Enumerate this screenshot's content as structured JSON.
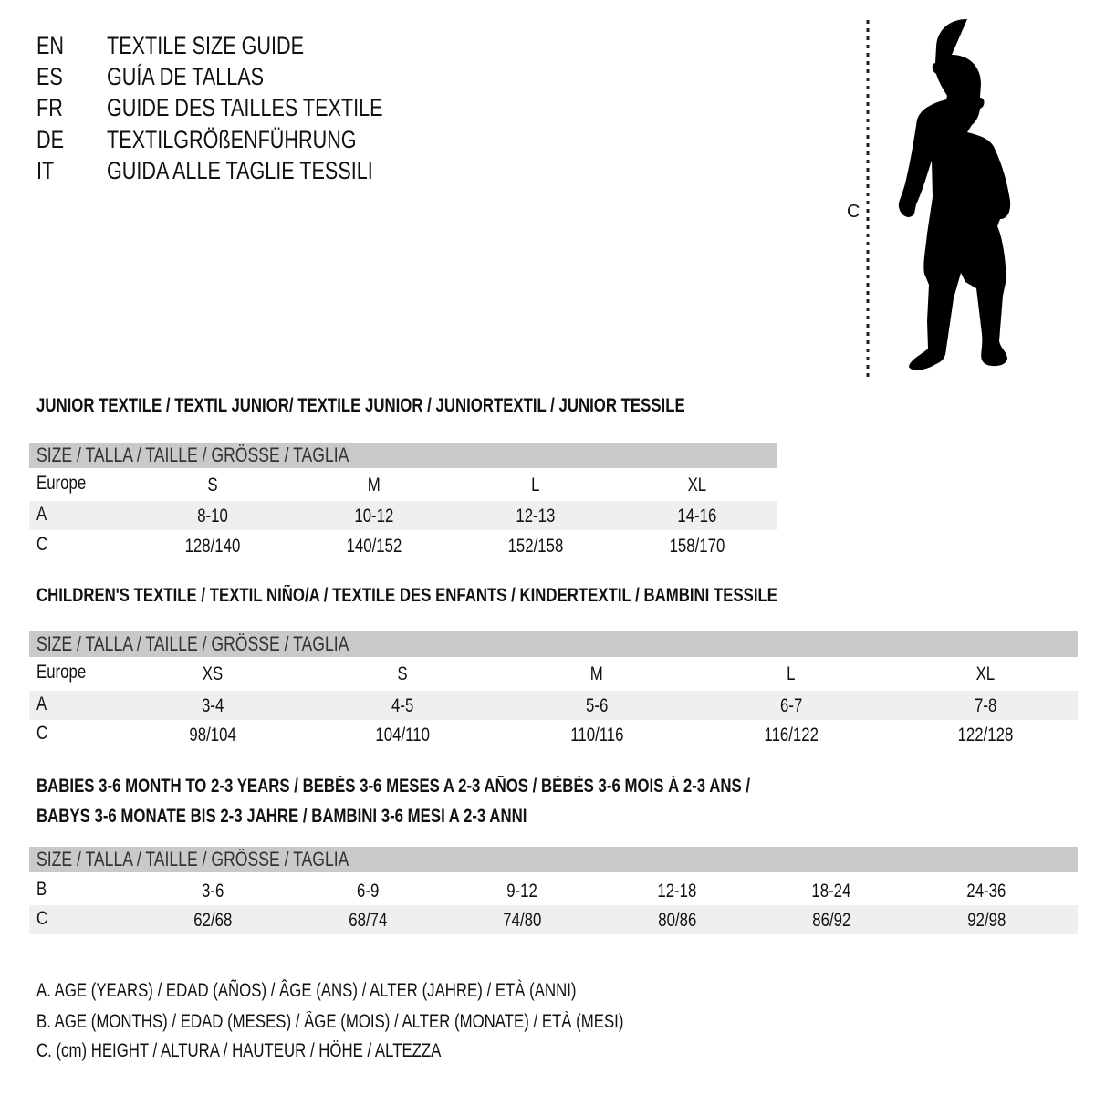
{
  "header": [
    {
      "code": "EN",
      "title": "TEXTILE SIZE GUIDE"
    },
    {
      "code": "ES",
      "title": "GUÍA DE TALLAS"
    },
    {
      "code": "FR",
      "title": "GUIDE DES TAILLES TEXTILE"
    },
    {
      "code": "DE",
      "title": "TEXTILGRÖßENFÜHRUNG"
    },
    {
      "code": "IT",
      "title": "GUIDA ALLE TAGLIE TESSILI"
    }
  ],
  "figure": {
    "label": "C",
    "icon": "child-silhouette-icon"
  },
  "colors": {
    "header_bar": "#c9c9c9",
    "shaded_row": "#efefef",
    "text": "#111111"
  },
  "tables": [
    {
      "title_lines": [
        "JUNIOR TEXTILE / TEXTIL JUNIOR/ TEXTILE JUNIOR / JUNIORTEXTIL / JUNIOR TESSILE"
      ],
      "header": "SIZE / TALLA / TAILLE / GRÖSSE / TAGLIA",
      "rows": [
        {
          "label": "Europe",
          "values": [
            "S",
            "M",
            "L",
            "XL"
          ]
        },
        {
          "label": "A",
          "values": [
            "8-10",
            "10-12",
            "12-13",
            "14-16"
          ]
        },
        {
          "label": "C",
          "values": [
            "128/140",
            "140/152",
            "152/158",
            "158/170"
          ]
        }
      ]
    },
    {
      "title_lines": [
        "CHILDREN'S TEXTILE / TEXTIL NIÑO/A / TEXTILE DES ENFANTS / KINDERTEXTIL / BAMBINI TESSILE"
      ],
      "header": "SIZE / TALLA / TAILLE / GRÖSSE / TAGLIA",
      "rows": [
        {
          "label": "Europe",
          "values": [
            "XS",
            "S",
            "M",
            "L",
            "XL"
          ]
        },
        {
          "label": "A",
          "values": [
            "3-4",
            "4-5",
            "5-6",
            "6-7",
            "7-8"
          ]
        },
        {
          "label": "C",
          "values": [
            "98/104",
            "104/110",
            "110/116",
            "116/122",
            "122/128"
          ]
        }
      ]
    },
    {
      "title_lines": [
        "BABIES 3-6 MONTH TO 2-3 YEARS / BEBÉS 3-6 MESES A 2-3 AÑOS / BÉBÉS 3-6 MOIS À 2-3 ANS /",
        "BABYS 3-6 MONATE BIS 2-3 JAHRE / BAMBINI 3-6 MESI A 2-3 ANNI"
      ],
      "header": "SIZE / TALLA / TAILLE / GRÖSSE / TAGLIA",
      "rows": [
        {
          "label": "B",
          "values": [
            "3-6",
            "6-9",
            "9-12",
            "12-18",
            "18-24",
            "24-36"
          ]
        },
        {
          "label": "C",
          "values": [
            "62/68",
            "68/74",
            "74/80",
            "80/86",
            "86/92",
            "92/98"
          ]
        }
      ]
    }
  ],
  "legend": [
    "A. AGE (YEARS) / EDAD (AÑOS) / ÂGE (ANS) / ALTER (JAHRE) / ETÀ (ANNI)",
    "B. AGE (MONTHS) / EDAD (MESES) / ÂGE (MOIS) / ALTER (MONATE) / ETÀ (MESI)",
    "C. (cm) HEIGHT / ALTURA / HAUTEUR / HÖHE / ALTEZZA"
  ]
}
